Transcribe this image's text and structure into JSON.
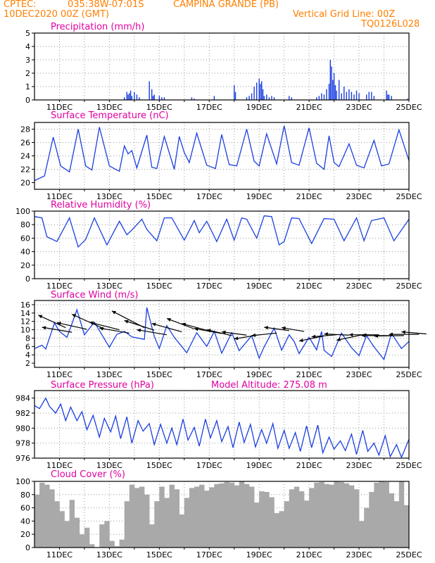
{
  "header": {
    "source": "CPTEC:",
    "coords": "035:38W-07:01S",
    "location": "CAMPINA GRANDE (PB)",
    "date": "10DEC2020 00Z (GMT)",
    "grid_note": "Vertical Grid Line: 00Z",
    "code": "TQ0126L028"
  },
  "colors": {
    "header": "#ff7f00",
    "title": "#e000a0",
    "line": "#1a3fe0",
    "bar": "#1a3fe0",
    "cloud": "#a9a9a9",
    "grid": "#9a9a9a"
  },
  "x_labels": [
    "11DEC",
    "13DEC",
    "15DEC",
    "17DEC",
    "19DEC",
    "21DEC",
    "23DEC",
    "25DEC"
  ],
  "chart_data": [
    {
      "type": "bar",
      "title": "Precipitation (mm/h)",
      "ylim": [
        0,
        5
      ],
      "yticks": [
        "0",
        "1",
        "2",
        "3",
        "4",
        "5"
      ],
      "xlim": [
        0,
        15
      ],
      "x": [
        3.6,
        3.7,
        3.75,
        3.8,
        3.85,
        3.9,
        4.0,
        4.1,
        4.2,
        4.6,
        4.7,
        4.75,
        4.8,
        5.0,
        5.1,
        5.2,
        6.3,
        6.4,
        7.2,
        8.0,
        8.05,
        8.5,
        8.6,
        8.7,
        8.8,
        8.9,
        9.0,
        9.05,
        9.1,
        9.15,
        9.2,
        9.3,
        9.4,
        9.5,
        9.6,
        10.2,
        10.3,
        11.3,
        11.4,
        11.5,
        11.6,
        11.7,
        11.8,
        11.85,
        11.9,
        11.95,
        12.0,
        12.05,
        12.1,
        12.2,
        12.3,
        12.4,
        12.5,
        12.6,
        12.7,
        12.8,
        12.9,
        13.0,
        13.3,
        13.4,
        13.5,
        13.6,
        14.1,
        14.15,
        14.2,
        14.3,
        14.95
      ],
      "values": [
        0.2,
        0.6,
        0.4,
        0.5,
        0.7,
        0.3,
        0.6,
        0.4,
        0.2,
        1.4,
        0.8,
        0.3,
        0.4,
        0.3,
        0.2,
        0.2,
        0.2,
        0.1,
        0.3,
        1.1,
        0.6,
        0.2,
        0.3,
        0.5,
        1.0,
        1.3,
        1.6,
        1.2,
        1.4,
        0.8,
        0.3,
        0.4,
        0.2,
        0.3,
        0.2,
        0.3,
        0.2,
        0.2,
        0.3,
        0.5,
        0.4,
        0.8,
        1.2,
        3.0,
        2.5,
        1.5,
        2.0,
        1.1,
        0.7,
        1.5,
        0.5,
        1.0,
        0.6,
        0.8,
        0.6,
        0.4,
        0.7,
        0.5,
        0.4,
        0.6,
        0.6,
        0.3,
        0.7,
        0.4,
        0.4,
        0.3,
        0.1
      ]
    },
    {
      "type": "line",
      "title": "Surface Temperature (nC)",
      "ylim": [
        19,
        29
      ],
      "yticks": [
        "20",
        "22",
        "24",
        "26",
        "28"
      ],
      "xlim": [
        0,
        15
      ],
      "x": [
        0,
        0.4,
        0.75,
        1.05,
        1.4,
        1.75,
        2.05,
        2.3,
        2.6,
        3.0,
        3.4,
        3.6,
        3.75,
        3.9,
        4.1,
        4.5,
        4.7,
        4.9,
        5.2,
        5.6,
        5.8,
        6.0,
        6.2,
        6.5,
        6.9,
        7.25,
        7.5,
        7.8,
        8.1,
        8.5,
        8.8,
        9.0,
        9.3,
        9.7,
        10.0,
        10.3,
        10.6,
        11.0,
        11.3,
        11.6,
        11.8,
        12.0,
        12.2,
        12.6,
        12.9,
        13.2,
        13.6,
        13.9,
        14.2,
        14.6,
        15.0
      ],
      "values": [
        20.3,
        21.0,
        26.8,
        22.5,
        21.6,
        28.0,
        22.5,
        21.9,
        28.3,
        22.5,
        21.7,
        25.5,
        24.3,
        24.8,
        22.2,
        27.1,
        22.3,
        22.1,
        26.9,
        22.0,
        26.9,
        24.5,
        23.0,
        27.4,
        22.6,
        22.1,
        27.2,
        22.7,
        22.5,
        28.0,
        23.2,
        22.5,
        27.3,
        22.8,
        28.5,
        23.0,
        22.6,
        28.2,
        22.9,
        22.0,
        27.0,
        23.0,
        22.4,
        25.8,
        22.6,
        22.2,
        26.3,
        22.5,
        22.8,
        27.9,
        23.3
      ]
    },
    {
      "type": "line",
      "title": "Relative Humidity (%)",
      "ylim": [
        0,
        100
      ],
      "yticks": [
        "0",
        "20",
        "40",
        "60",
        "80",
        "100"
      ],
      "xlim": [
        0,
        15
      ],
      "x": [
        0,
        0.3,
        0.5,
        0.9,
        1.4,
        1.75,
        2.05,
        2.4,
        2.9,
        3.4,
        3.7,
        3.9,
        4.3,
        4.5,
        4.9,
        5.2,
        5.5,
        6.0,
        6.4,
        6.6,
        6.9,
        7.3,
        7.7,
        8.0,
        8.3,
        8.5,
        8.9,
        9.2,
        9.5,
        9.8,
        10.0,
        10.3,
        10.6,
        11.1,
        11.6,
        12.0,
        12.4,
        12.9,
        13.2,
        13.5,
        14.0,
        14.4,
        15.0
      ],
      "values": [
        92,
        90,
        62,
        55,
        90,
        47,
        58,
        90,
        50,
        85,
        65,
        72,
        88,
        73,
        56,
        90,
        90,
        57,
        86,
        68,
        85,
        55,
        88,
        57,
        90,
        88,
        60,
        93,
        92,
        50,
        55,
        90,
        89,
        52,
        89,
        88,
        56,
        90,
        56,
        86,
        90,
        56,
        88
      ]
    },
    {
      "type": "line",
      "title": "Surface Wind (m/s)",
      "ylim": [
        1,
        17
      ],
      "yticks": [
        "2",
        "4",
        "6",
        "8",
        "10",
        "12",
        "14",
        "16"
      ],
      "xlim": [
        0,
        15
      ],
      "x": [
        0,
        0.3,
        0.45,
        0.8,
        1.0,
        1.3,
        1.45,
        1.7,
        2.0,
        2.4,
        2.7,
        3.0,
        3.3,
        3.6,
        3.9,
        4.4,
        4.5,
        4.8,
        5.0,
        5.3,
        5.6,
        6.1,
        6.5,
        6.9,
        7.2,
        7.5,
        7.9,
        8.2,
        8.7,
        9.0,
        9.2,
        9.6,
        9.9,
        10.2,
        10.4,
        10.6,
        11.0,
        11.3,
        11.5,
        11.6,
        11.9,
        12.3,
        12.7,
        13.0,
        13.3,
        13.6,
        14.0,
        14.3,
        14.7,
        15.0
      ],
      "values": [
        5.5,
        6.3,
        5.4,
        11.6,
        9.6,
        8.2,
        10.6,
        14.8,
        8.8,
        11.8,
        8.8,
        5.8,
        8.9,
        9.6,
        8.3,
        7.7,
        15.3,
        8.4,
        5.5,
        11.0,
        8.2,
        4.5,
        9.3,
        6.0,
        9.6,
        4.4,
        9.3,
        5.0,
        8.6,
        3.2,
        5.9,
        10.4,
        5.1,
        8.8,
        7.2,
        4.3,
        8.2,
        5.2,
        9.6,
        5.1,
        3.6,
        9.2,
        5.7,
        3.8,
        8.6,
        5.9,
        2.9,
        9.1,
        5.5,
        7.2
      ],
      "vectors": [
        {
          "x": 0.15,
          "y": 13.5,
          "dx": 1.1,
          "dy": -3
        },
        {
          "x": 0.3,
          "y": 10.6,
          "dx": 1.2,
          "dy": -1.2
        },
        {
          "x": 0.9,
          "y": 11.7,
          "dx": 1.2,
          "dy": -1.6
        },
        {
          "x": 1.5,
          "y": 13.7,
          "dx": 1.3,
          "dy": -3.5
        },
        {
          "x": 2.2,
          "y": 11.8,
          "dx": 1.2,
          "dy": -1.8
        },
        {
          "x": 2.6,
          "y": 10.4,
          "dx": 1.2,
          "dy": -1.2
        },
        {
          "x": 3.1,
          "y": 14.5,
          "dx": 1.3,
          "dy": -4
        },
        {
          "x": 3.6,
          "y": 12.2,
          "dx": 1.2,
          "dy": -2.3
        },
        {
          "x": 4.1,
          "y": 10.0,
          "dx": 1.2,
          "dy": -1.2
        },
        {
          "x": 4.7,
          "y": 11.5,
          "dx": 1.2,
          "dy": -2
        },
        {
          "x": 5.3,
          "y": 12.7,
          "dx": 1.1,
          "dy": -2.5
        },
        {
          "x": 5.9,
          "y": 11.5,
          "dx": 1.1,
          "dy": -1.8
        },
        {
          "x": 6.4,
          "y": 10.3,
          "dx": 1.1,
          "dy": -1.2
        },
        {
          "x": 6.9,
          "y": 10.0,
          "dx": 1.0,
          "dy": -1.4
        },
        {
          "x": 7.5,
          "y": 9.5,
          "dx": 1.0,
          "dy": -0.8
        },
        {
          "x": 8.0,
          "y": 7.8,
          "dx": 1.0,
          "dy": 1.0
        },
        {
          "x": 8.7,
          "y": 8.6,
          "dx": 1.0,
          "dy": 0.6
        },
        {
          "x": 9.2,
          "y": 10.6,
          "dx": 1.0,
          "dy": -0.8
        },
        {
          "x": 9.9,
          "y": 10.5,
          "dx": 0.9,
          "dy": -0.9
        },
        {
          "x": 10.6,
          "y": 7.3,
          "dx": 1.0,
          "dy": 1.2
        },
        {
          "x": 11.1,
          "y": 8.3,
          "dx": 1.0,
          "dy": 0.5
        },
        {
          "x": 11.6,
          "y": 9.0,
          "dx": 1.0,
          "dy": -0.3
        },
        {
          "x": 12.1,
          "y": 7.5,
          "dx": 1.2,
          "dy": 1.5
        },
        {
          "x": 12.6,
          "y": 8.8,
          "dx": 1.2,
          "dy": 0
        },
        {
          "x": 13.1,
          "y": 8.6,
          "dx": 1.2,
          "dy": 0
        },
        {
          "x": 13.6,
          "y": 8.5,
          "dx": 1.2,
          "dy": 0.1
        },
        {
          "x": 14.2,
          "y": 8.9,
          "dx": 1.2,
          "dy": 0
        },
        {
          "x": 14.7,
          "y": 9.5,
          "dx": 1.0,
          "dy": -0.5
        }
      ]
    },
    {
      "type": "line",
      "title": "Surface Pressure (hPa)",
      "annotation": "Model Altitude: 275.08 m",
      "ylim": [
        976,
        985
      ],
      "yticks": [
        "976",
        "978",
        "980",
        "982",
        "984"
      ],
      "xlim": [
        0,
        15
      ],
      "x": [
        0,
        0.2,
        0.45,
        0.6,
        0.85,
        1.05,
        1.25,
        1.45,
        1.7,
        1.9,
        2.1,
        2.35,
        2.6,
        2.8,
        3.05,
        3.25,
        3.45,
        3.7,
        3.9,
        4.15,
        4.35,
        4.6,
        4.8,
        5.05,
        5.3,
        5.5,
        5.7,
        5.95,
        6.15,
        6.4,
        6.6,
        6.85,
        7.05,
        7.3,
        7.5,
        7.75,
        7.95,
        8.2,
        8.4,
        8.65,
        8.85,
        9.1,
        9.3,
        9.55,
        9.75,
        10.0,
        10.2,
        10.45,
        10.65,
        10.9,
        11.1,
        11.35,
        11.55,
        11.8,
        12.0,
        12.25,
        12.45,
        12.7,
        12.9,
        13.15,
        13.35,
        13.6,
        13.8,
        14.05,
        14.25,
        14.5,
        14.7,
        15.0
      ],
      "values": [
        983.0,
        982.6,
        984.0,
        982.9,
        982.0,
        983.2,
        981.0,
        982.8,
        981.0,
        982.2,
        979.8,
        981.7,
        978.8,
        981.3,
        979.5,
        981.6,
        978.6,
        981.5,
        978.0,
        981.0,
        979.6,
        980.6,
        977.8,
        980.5,
        978.0,
        980.0,
        977.8,
        981.2,
        978.4,
        980.1,
        977.6,
        981.2,
        978.7,
        981.0,
        978.2,
        980.2,
        977.4,
        980.8,
        978.1,
        980.5,
        977.5,
        979.8,
        978.0,
        980.6,
        977.3,
        979.7,
        977.3,
        979.4,
        976.9,
        980.3,
        977.4,
        980.4,
        976.7,
        978.8,
        977.2,
        978.3,
        977.0,
        979.2,
        976.5,
        979.7,
        976.9,
        978.0,
        976.4,
        979.0,
        976.2,
        977.8,
        976.1,
        978.5
      ]
    },
    {
      "type": "area",
      "title": "Cloud Cover (%)",
      "ylim": [
        0,
        100
      ],
      "yticks": [
        "0",
        "20",
        "40",
        "60",
        "80",
        "100"
      ],
      "xlim": [
        0,
        15
      ],
      "x": [
        0,
        0.2,
        0.4,
        0.6,
        0.8,
        1.0,
        1.2,
        1.4,
        1.6,
        1.8,
        2.0,
        2.2,
        2.4,
        2.6,
        2.8,
        3.0,
        3.2,
        3.4,
        3.6,
        3.8,
        4.0,
        4.2,
        4.4,
        4.6,
        4.8,
        5.0,
        5.2,
        5.4,
        5.6,
        5.8,
        6.0,
        6.2,
        6.4,
        6.6,
        6.8,
        7.0,
        7.2,
        7.4,
        7.6,
        7.8,
        8.0,
        8.2,
        8.4,
        8.6,
        8.8,
        9.0,
        9.2,
        9.4,
        9.6,
        9.8,
        10.0,
        10.2,
        10.4,
        10.6,
        10.8,
        11.0,
        11.2,
        11.4,
        11.6,
        11.8,
        12.0,
        12.2,
        12.4,
        12.6,
        12.8,
        13.0,
        13.2,
        13.4,
        13.6,
        13.8,
        14.0,
        14.2,
        14.4,
        14.6,
        14.8,
        15.0
      ],
      "values": [
        80,
        98,
        95,
        88,
        70,
        55,
        40,
        72,
        45,
        20,
        30,
        5,
        0,
        35,
        40,
        10,
        2,
        12,
        70,
        95,
        90,
        92,
        80,
        35,
        70,
        92,
        75,
        95,
        88,
        50,
        75,
        90,
        92,
        95,
        86,
        91,
        96,
        97,
        99,
        98,
        94,
        100,
        96,
        92,
        68,
        85,
        84,
        76,
        52,
        55,
        70,
        88,
        92,
        85,
        71,
        90,
        98,
        99,
        96,
        95,
        100,
        99,
        97,
        94,
        88,
        40,
        60,
        84,
        98,
        100,
        99,
        82,
        70,
        100,
        64,
        40
      ]
    }
  ]
}
